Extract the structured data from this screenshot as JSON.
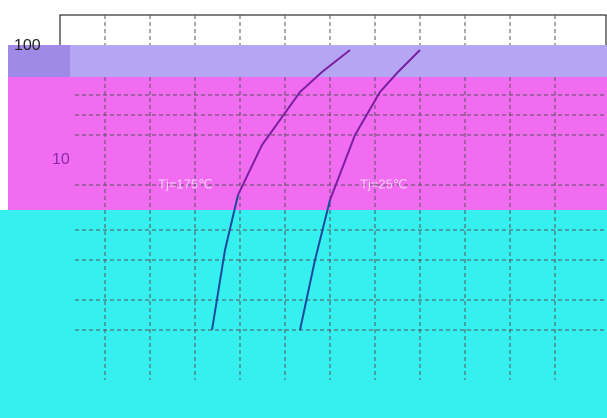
{
  "axis_labels": {
    "top": "100",
    "middle": "10"
  },
  "annotations": {
    "hot": "Tj=175℃",
    "cold": "Tj=25℃"
  }
}
